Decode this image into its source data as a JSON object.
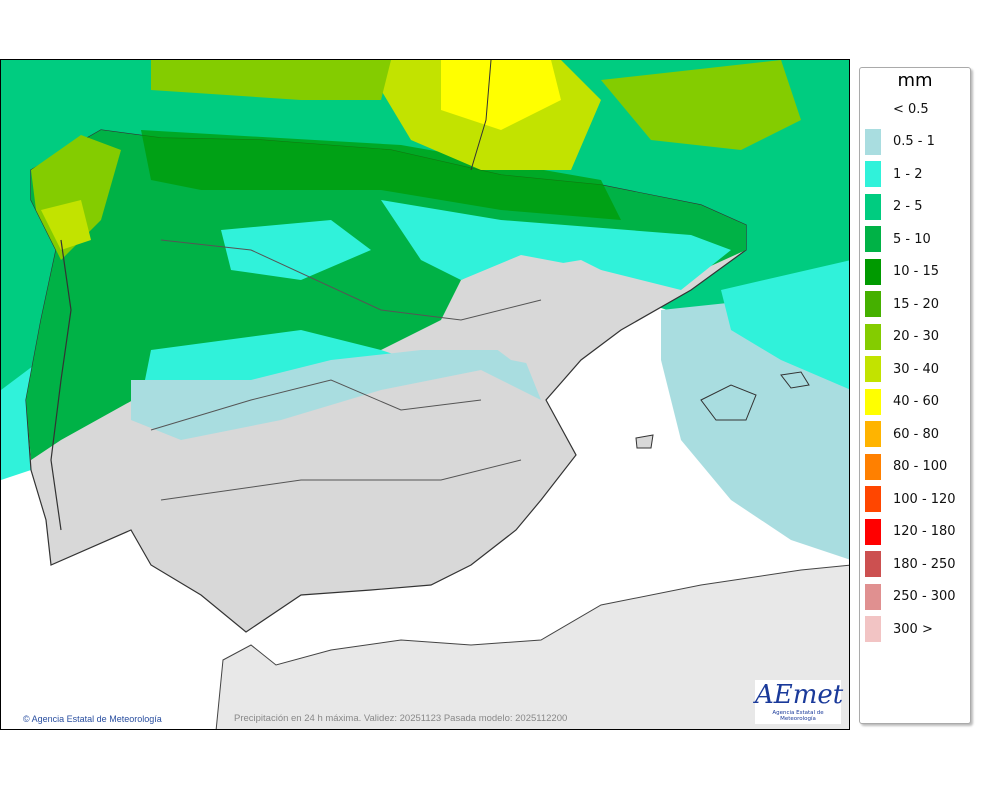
{
  "map": {
    "credit": "Agencia Estatal de Meteorología",
    "caption": "Precipitación en 24 h máxima. Validez: 20251123 Pasada modelo: 2025112200",
    "logo": {
      "text": "AEmet",
      "subtitle": "Agencia Estatal de Meteorología"
    }
  },
  "legend": {
    "unit": "mm",
    "items": [
      {
        "label": "< 0.5",
        "color": "#ffffff"
      },
      {
        "label": "0.5 - 1",
        "color": "#a9dde0"
      },
      {
        "label": "1 - 2",
        "color": "#30f2da"
      },
      {
        "label": "2 - 5",
        "color": "#00cc80"
      },
      {
        "label": "5 - 10",
        "color": "#00b246"
      },
      {
        "label": "10 - 15",
        "color": "#009a00"
      },
      {
        "label": "15 - 20",
        "color": "#45b000"
      },
      {
        "label": "20 - 30",
        "color": "#84cc00"
      },
      {
        "label": "30 - 40",
        "color": "#c2e300"
      },
      {
        "label": "40 - 60",
        "color": "#ffff00"
      },
      {
        "label": "60 - 80",
        "color": "#ffb400"
      },
      {
        "label": "80 - 100",
        "color": "#ff8000"
      },
      {
        "label": "100 - 120",
        "color": "#ff4600"
      },
      {
        "label": "120 - 180",
        "color": "#ff0000"
      },
      {
        "label": "180 - 250",
        "color": "#cc5050"
      },
      {
        "label": "250 - 300",
        "color": "#e09090"
      },
      {
        "label": "300 >",
        "color": "#f2c4c4"
      }
    ]
  }
}
